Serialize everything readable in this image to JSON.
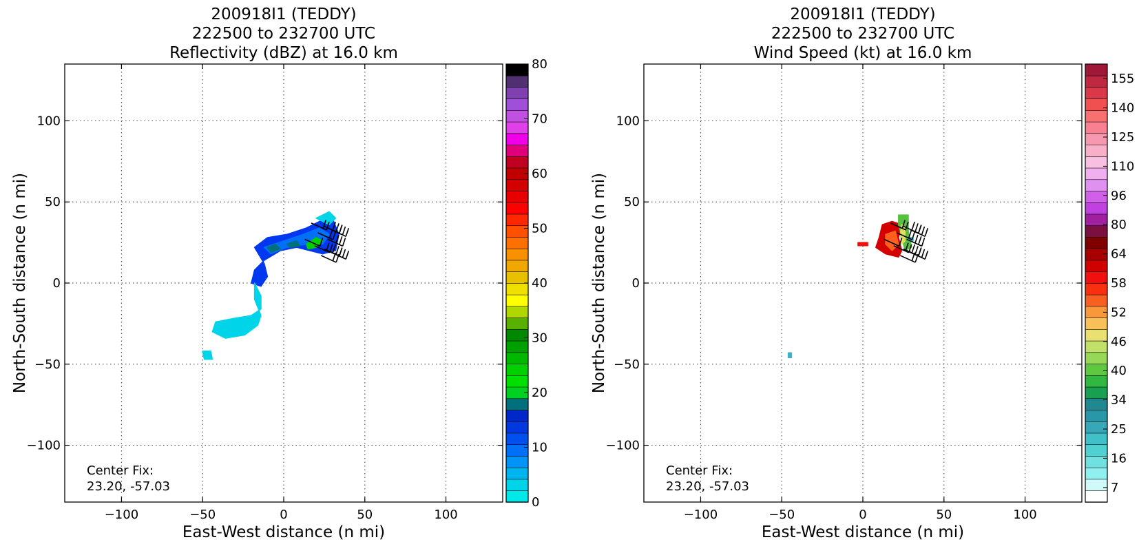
{
  "chart_data": [
    {
      "type": "heatmap",
      "title_lines": [
        "200918I1 (TEDDY)",
        "222500 to 232700 UTC",
        "Reflectivity (dBZ) at 16.0 km"
      ],
      "xlabel": "East-West distance (n mi)",
      "ylabel": "North-South distance (n mi)",
      "xlim": [
        -135,
        135
      ],
      "ylim": [
        -135,
        135
      ],
      "x_ticks": [
        -100,
        -50,
        0,
        50,
        100
      ],
      "y_ticks": [
        -100,
        -50,
        0,
        50,
        100
      ],
      "x_tick_labels": [
        "−100",
        "−50",
        "0",
        "50",
        "100"
      ],
      "y_tick_labels": [
        "−100",
        "−50",
        "0",
        "50",
        "100"
      ],
      "grid": true,
      "annotation": [
        "Center Fix:",
        "23.20, -57.03"
      ],
      "colorbar": {
        "min": 0,
        "max": 80,
        "tick_values": [
          0,
          10,
          20,
          30,
          40,
          50,
          60,
          70,
          80
        ],
        "tick_labels": [
          "0",
          "10",
          "20",
          "30",
          "40",
          "50",
          "60",
          "70",
          "80"
        ],
        "colors": [
          "#00e8e8",
          "#00d4e8",
          "#00b4f0",
          "#0094f8",
          "#0070f8",
          "#0050f0",
          "#0038e0",
          "#0028c8",
          "#00707c",
          "#00d020",
          "#00e000",
          "#00d000",
          "#00b800",
          "#00a000",
          "#008800",
          "#58b000",
          "#b0d800",
          "#ffff00",
          "#f0e000",
          "#e8c000",
          "#f0a800",
          "#f89000",
          "#ff7000",
          "#ff5000",
          "#ff2800",
          "#ff0000",
          "#e80000",
          "#d40000",
          "#c00000",
          "#c00020",
          "#e0007c",
          "#f000e8",
          "#e040e8",
          "#c050e0",
          "#a050d8",
          "#8040b0",
          "#503070",
          "#000000"
        ]
      },
      "features": [
        {
          "name": "main-band",
          "color": "#0038f0",
          "points": [
            [
              -18,
              22
            ],
            [
              -10,
              28
            ],
            [
              2,
              30
            ],
            [
              14,
              34
            ],
            [
              22,
              38
            ],
            [
              30,
              40
            ],
            [
              34,
              30
            ],
            [
              32,
              20
            ],
            [
              24,
              18
            ],
            [
              16,
              20
            ],
            [
              8,
              22
            ],
            [
              -2,
              20
            ],
            [
              -12,
              14
            ],
            [
              -18,
              8
            ],
            [
              -20,
              0
            ],
            [
              -14,
              -2
            ],
            [
              -10,
              4
            ],
            [
              -12,
              12
            ]
          ]
        },
        {
          "name": "band-inner",
          "color": "#0070f8",
          "points": [
            [
              -12,
              22
            ],
            [
              0,
              26
            ],
            [
              12,
              30
            ],
            [
              22,
              34
            ],
            [
              28,
              30
            ],
            [
              24,
              24
            ],
            [
              14,
              24
            ],
            [
              2,
              22
            ],
            [
              -8,
              18
            ]
          ]
        },
        {
          "name": "tail",
          "color": "#00d4e8",
          "points": [
            [
              -18,
              0
            ],
            [
              -14,
              -8
            ],
            [
              -14,
              -16
            ],
            [
              -20,
              -20
            ],
            [
              -32,
              -22
            ],
            [
              -42,
              -24
            ],
            [
              -44,
              -30
            ],
            [
              -36,
              -34
            ],
            [
              -24,
              -32
            ],
            [
              -16,
              -26
            ],
            [
              -14,
              -20
            ],
            [
              -18,
              -10
            ]
          ]
        },
        {
          "name": "ne-fringe",
          "color": "#00d4e8",
          "points": [
            [
              20,
              40
            ],
            [
              28,
              44
            ],
            [
              32,
              40
            ],
            [
              28,
              36
            ]
          ]
        },
        {
          "name": "sw-fleck",
          "color": "#00d4e8",
          "points": [
            [
              -50,
              -42
            ],
            [
              -45,
              -42
            ],
            [
              -44,
              -47
            ],
            [
              -49,
              -47
            ]
          ]
        },
        {
          "name": "core",
          "color": "#00d000",
          "points": [
            [
              14,
              24
            ],
            [
              20,
              28
            ],
            [
              24,
              26
            ],
            [
              20,
              22
            ],
            [
              15,
              21
            ]
          ]
        },
        {
          "name": "cell-a",
          "color": "#00707c",
          "points": [
            [
              -10,
              22
            ],
            [
              -5,
              24
            ],
            [
              -2,
              21
            ],
            [
              -8,
              19
            ]
          ]
        },
        {
          "name": "cell-b",
          "color": "#00707c",
          "points": [
            [
              2,
              24
            ],
            [
              8,
              26
            ],
            [
              10,
              23
            ],
            [
              4,
              22
            ]
          ]
        }
      ],
      "wind_barbs": [
        [
          17,
          37,
          2
        ],
        [
          25,
          35,
          3
        ],
        [
          29,
          33,
          3
        ],
        [
          21,
          31,
          2
        ],
        [
          27,
          27,
          3
        ],
        [
          13,
          27,
          1
        ],
        [
          19,
          23,
          2
        ],
        [
          25,
          21,
          3
        ],
        [
          23,
          17,
          2
        ],
        [
          29,
          19,
          3
        ]
      ]
    },
    {
      "type": "heatmap",
      "title_lines": [
        "200918I1 (TEDDY)",
        "222500 to 232700 UTC",
        "Wind Speed (kt) at 16.0 km"
      ],
      "xlabel": "East-West distance (n mi)",
      "ylabel": "North-South distance (n mi)",
      "xlim": [
        -135,
        135
      ],
      "ylim": [
        -135,
        135
      ],
      "x_ticks": [
        -100,
        -50,
        0,
        50,
        100
      ],
      "y_ticks": [
        -100,
        -50,
        0,
        50,
        100
      ],
      "x_tick_labels": [
        "−100",
        "−50",
        "0",
        "50",
        "100"
      ],
      "y_tick_labels": [
        "−100",
        "−50",
        "0",
        "50",
        "100"
      ],
      "grid": true,
      "annotation": [
        "Center Fix:",
        "23.20, -57.03"
      ],
      "colorbar": {
        "tick_labels": [
          "7",
          "16",
          "25",
          "34",
          "40",
          "46",
          "52",
          "58",
          "64",
          "80",
          "96",
          "110",
          "125",
          "140",
          "155"
        ],
        "colors": [
          "#ffffff",
          "#d0fafa",
          "#90f0f0",
          "#70e0e0",
          "#50d0d0",
          "#40c0c8",
          "#38a8b8",
          "#2898a8",
          "#208890",
          "#18a050",
          "#30b840",
          "#60c840",
          "#98d858",
          "#c0e068",
          "#e8e070",
          "#f8c058",
          "#f89838",
          "#f86020",
          "#f83010",
          "#f01010",
          "#d00000",
          "#a80000",
          "#800000",
          "#7a1040",
          "#a020a0",
          "#c040e0",
          "#d060e8",
          "#e090f0",
          "#f0b0f0",
          "#f8c0e0",
          "#f8b0c8",
          "#f898b0",
          "#f88090",
          "#f87070",
          "#f05050",
          "#d83848",
          "#c02840",
          "#a01838"
        ]
      },
      "features": [
        {
          "name": "wind-red-core",
          "color": "#d40000",
          "points": [
            [
              12,
              36
            ],
            [
              18,
              38
            ],
            [
              24,
              36
            ],
            [
              22,
              28
            ],
            [
              24,
              20
            ],
            [
              22,
              16
            ],
            [
              14,
              18
            ],
            [
              8,
              22
            ],
            [
              10,
              28
            ]
          ]
        },
        {
          "name": "wind-orange",
          "color": "#ff6020",
          "points": [
            [
              14,
              30
            ],
            [
              20,
              32
            ],
            [
              22,
              24
            ],
            [
              18,
              20
            ],
            [
              14,
              24
            ]
          ]
        },
        {
          "name": "wind-green-edge",
          "color": "#58c040",
          "points": [
            [
              22,
              42
            ],
            [
              28,
              42
            ],
            [
              28,
              32
            ],
            [
              30,
              22
            ],
            [
              26,
              20
            ],
            [
              24,
              28
            ],
            [
              22,
              36
            ]
          ]
        },
        {
          "name": "wind-yellow",
          "color": "#e0e060",
          "points": [
            [
              24,
              36
            ],
            [
              26,
              34
            ],
            [
              26,
              26
            ],
            [
              24,
              24
            ],
            [
              23,
              30
            ]
          ]
        },
        {
          "name": "wind-red-fleck",
          "color": "#f01010",
          "points": [
            [
              -3,
              25
            ],
            [
              3,
              25
            ],
            [
              3,
              23
            ],
            [
              -3,
              23
            ]
          ]
        },
        {
          "name": "wind-teal-fleck",
          "color": "#40b0c0",
          "points": [
            [
              28,
              28
            ],
            [
              31,
              28
            ],
            [
              31,
              26
            ],
            [
              28,
              26
            ]
          ]
        },
        {
          "name": "wind-sw-fleck",
          "color": "#40b0c0",
          "points": [
            [
              -46,
              -43
            ],
            [
              -44,
              -43
            ],
            [
              -44,
              -46
            ],
            [
              -46,
              -46
            ]
          ]
        }
      ],
      "wind_barbs": [
        [
          17,
          37,
          2
        ],
        [
          25,
          35,
          3
        ],
        [
          29,
          33,
          3
        ],
        [
          21,
          31,
          2
        ],
        [
          27,
          27,
          3
        ],
        [
          13,
          27,
          1
        ],
        [
          19,
          23,
          2
        ],
        [
          25,
          21,
          3
        ],
        [
          23,
          17,
          2
        ],
        [
          29,
          19,
          3
        ]
      ]
    }
  ]
}
